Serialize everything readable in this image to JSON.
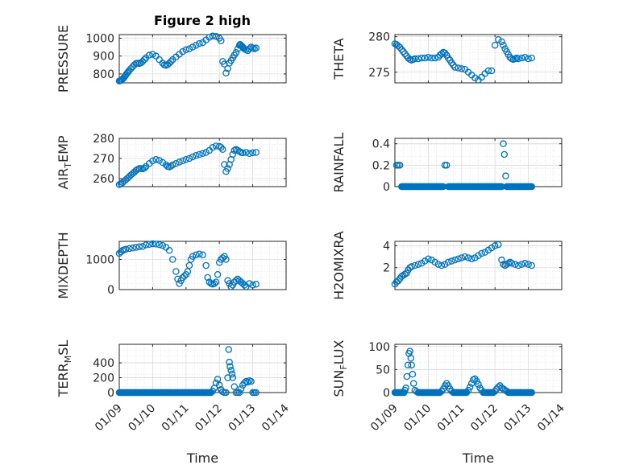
{
  "figure": {
    "title": "Figure 2 high",
    "marker_color": "#0072BD"
  },
  "chart_data": [
    {
      "type": "scatter",
      "ylabel": "PRESSURE",
      "ylim": [
        750,
        1020
      ],
      "yticks": [
        800,
        900,
        1000
      ],
      "xlim": [
        0,
        5
      ],
      "xticks": [],
      "x": [
        0.0,
        0.03,
        0.06,
        0.09,
        0.12,
        0.15,
        0.18,
        0.21,
        0.24,
        0.27,
        0.3,
        0.35,
        0.4,
        0.45,
        0.5,
        0.55,
        0.6,
        0.65,
        0.7,
        0.75,
        0.8,
        0.9,
        1.0,
        1.1,
        1.2,
        1.3,
        1.35,
        1.4,
        1.45,
        1.5,
        1.55,
        1.6,
        1.7,
        1.8,
        1.9,
        2.0,
        2.1,
        2.2,
        2.3,
        2.4,
        2.5,
        2.6,
        2.7,
        2.8,
        2.9,
        3.0,
        3.05,
        3.1,
        3.15,
        3.2,
        3.25,
        3.3,
        3.35,
        3.4,
        3.45,
        3.5,
        3.55,
        3.6,
        3.62,
        3.65,
        3.68,
        3.7,
        3.72,
        3.75,
        3.8,
        3.85,
        3.9,
        3.95,
        4.0,
        4.05,
        4.1
      ],
      "y": [
        760,
        762,
        765,
        770,
        775,
        782,
        790,
        798,
        805,
        812,
        820,
        830,
        840,
        850,
        858,
        860,
        858,
        862,
        870,
        880,
        890,
        905,
        910,
        900,
        880,
        860,
        850,
        848,
        852,
        860,
        870,
        880,
        895,
        910,
        925,
        935,
        940,
        950,
        960,
        970,
        975,
        990,
        1005,
        1012,
        1010,
        1000,
        985,
        870,
        855,
        805,
        830,
        860,
        875,
        890,
        905,
        920,
        940,
        960,
        965,
        960,
        955,
        950,
        945,
        940,
        935,
        930,
        940,
        950,
        945,
        940,
        945
      ],
      "y_x": [
        3.12
      ],
      "title": ""
    },
    {
      "type": "scatter",
      "ylabel": "THETA",
      "ylim": [
        273.5,
        280.3
      ],
      "yticks": [
        275,
        280
      ],
      "xlim": [
        0,
        5
      ],
      "xticks": [],
      "x": [
        0.0,
        0.05,
        0.1,
        0.15,
        0.2,
        0.25,
        0.3,
        0.35,
        0.4,
        0.45,
        0.5,
        0.55,
        0.6,
        0.7,
        0.8,
        0.9,
        1.0,
        1.1,
        1.2,
        1.3,
        1.35,
        1.4,
        1.45,
        1.5,
        1.55,
        1.6,
        1.65,
        1.7,
        1.75,
        1.8,
        1.9,
        2.0,
        2.1,
        2.2,
        2.3,
        2.4,
        2.5,
        2.6,
        2.7,
        2.8,
        2.9,
        3.0,
        3.1,
        3.2,
        3.25,
        3.3,
        3.35,
        3.4,
        3.45,
        3.5,
        3.55,
        3.6,
        3.65,
        3.7,
        3.8,
        3.9,
        4.0,
        4.1
      ],
      "y": [
        279.0,
        278.9,
        278.7,
        278.5,
        278.2,
        277.9,
        277.6,
        277.3,
        277.0,
        276.8,
        276.7,
        276.8,
        276.9,
        276.9,
        277.0,
        277.0,
        277.1,
        277.0,
        277.0,
        277.1,
        277.4,
        277.6,
        277.8,
        277.7,
        277.4,
        277.0,
        276.7,
        276.3,
        276.0,
        275.7,
        275.6,
        275.5,
        275.4,
        275.0,
        274.6,
        274.2,
        273.9,
        274.3,
        274.8,
        275.2,
        275.2,
        278.8,
        279.6,
        279.3,
        278.8,
        278.3,
        277.9,
        277.5,
        277.1,
        276.9,
        276.8,
        276.9,
        277.0,
        276.9,
        277.0,
        277.1,
        276.9,
        277.0
      ],
      "title": ""
    },
    {
      "type": "scatter",
      "ylabel": "AIR_TEMP",
      "ylim": [
        256,
        280
      ],
      "yticks": [
        260,
        270,
        280
      ],
      "xlim": [
        0,
        5
      ],
      "xticks": [],
      "x": [
        0.0,
        0.05,
        0.1,
        0.15,
        0.2,
        0.25,
        0.3,
        0.35,
        0.4,
        0.45,
        0.5,
        0.55,
        0.6,
        0.65,
        0.7,
        0.75,
        0.8,
        0.9,
        1.0,
        1.1,
        1.2,
        1.3,
        1.4,
        1.45,
        1.5,
        1.55,
        1.6,
        1.7,
        1.8,
        1.9,
        2.0,
        2.1,
        2.2,
        2.3,
        2.4,
        2.5,
        2.6,
        2.7,
        2.8,
        2.9,
        3.0,
        3.05,
        3.1,
        3.15,
        3.2,
        3.25,
        3.3,
        3.35,
        3.4,
        3.45,
        3.5,
        3.55,
        3.6,
        3.65,
        3.7,
        3.8,
        3.9,
        4.0,
        4.1
      ],
      "y": [
        257.0,
        257.5,
        258.0,
        258.8,
        259.5,
        260.2,
        261.0,
        261.8,
        262.5,
        263.2,
        264.0,
        264.6,
        265.0,
        265.0,
        264.8,
        265.2,
        266.0,
        267.5,
        268.8,
        269.5,
        269.0,
        268.0,
        266.8,
        266.0,
        265.8,
        266.2,
        266.8,
        267.5,
        268.2,
        268.8,
        269.5,
        270.0,
        270.8,
        271.5,
        272.0,
        272.5,
        273.0,
        274.0,
        275.5,
        276.2,
        276.0,
        275.5,
        274.5,
        267.0,
        263.5,
        265.0,
        267.0,
        269.5,
        272.0,
        274.0,
        274.5,
        274.0,
        273.5,
        273.0,
        272.8,
        273.0,
        272.5,
        272.8,
        273.0
      ],
      "title": ""
    },
    {
      "type": "scatter",
      "ylabel": "RAINFALL",
      "ylim": [
        0,
        0.45
      ],
      "yticks": [
        0,
        0.2,
        0.4
      ],
      "xlim": [
        0,
        5
      ],
      "xticks": [],
      "x": [
        0.05,
        0.1,
        0.15,
        1.5,
        1.55,
        3.25,
        3.28,
        3.32
      ],
      "y": [
        0.2,
        0.2,
        0.2,
        0.2,
        0.2,
        0.4,
        0.3,
        0.1
      ],
      "zero_run": [
        [
          0.2,
          1.45
        ],
        [
          1.6,
          3.2
        ],
        [
          3.35,
          4.1
        ]
      ],
      "title": ""
    },
    {
      "type": "scatter",
      "ylabel": "MIXDEPTH",
      "ylim": [
        0,
        1600
      ],
      "yticks": [
        0,
        1000
      ],
      "xlim": [
        0,
        5
      ],
      "xticks": [],
      "x": [
        0.0,
        0.05,
        0.1,
        0.15,
        0.2,
        0.3,
        0.4,
        0.5,
        0.6,
        0.7,
        0.8,
        0.9,
        1.0,
        1.1,
        1.2,
        1.3,
        1.4,
        1.5,
        1.6,
        1.7,
        1.75,
        1.8,
        1.85,
        1.9,
        1.95,
        2.0,
        2.05,
        2.1,
        2.15,
        2.2,
        2.3,
        2.4,
        2.5,
        2.6,
        2.65,
        2.7,
        2.75,
        2.8,
        2.85,
        2.9,
        2.95,
        3.0,
        3.05,
        3.1,
        3.15,
        3.2,
        3.25,
        3.3,
        3.35,
        3.4,
        3.45,
        3.5,
        3.55,
        3.6,
        3.65,
        3.7,
        3.75,
        3.8,
        3.9,
        4.0,
        4.1
      ],
      "y": [
        1200,
        1250,
        1300,
        1320,
        1340,
        1360,
        1380,
        1400,
        1420,
        1430,
        1480,
        1500,
        1520,
        1510,
        1490,
        1460,
        1400,
        1300,
        1000,
        600,
        350,
        200,
        300,
        400,
        450,
        500,
        600,
        800,
        1000,
        1100,
        1150,
        1180,
        1150,
        800,
        400,
        250,
        200,
        180,
        200,
        250,
        500,
        900,
        1000,
        1050,
        1100,
        1000,
        300,
        200,
        100,
        150,
        250,
        300,
        350,
        300,
        250,
        200,
        150,
        100,
        200,
        150,
        180
      ],
      "title": ""
    },
    {
      "type": "scatter",
      "ylabel": "H2OMIXRA",
      "ylim": [
        0,
        4.4
      ],
      "yticks": [
        2,
        4
      ],
      "xlim": [
        0,
        5
      ],
      "xticks": [],
      "x": [
        0.0,
        0.05,
        0.1,
        0.15,
        0.2,
        0.25,
        0.3,
        0.35,
        0.4,
        0.45,
        0.5,
        0.6,
        0.7,
        0.8,
        0.9,
        1.0,
        1.1,
        1.2,
        1.3,
        1.4,
        1.5,
        1.6,
        1.7,
        1.8,
        1.9,
        2.0,
        2.1,
        2.2,
        2.3,
        2.4,
        2.5,
        2.6,
        2.7,
        2.8,
        2.9,
        3.0,
        3.1,
        3.2,
        3.25,
        3.3,
        3.35,
        3.4,
        3.45,
        3.5,
        3.6,
        3.7,
        3.8,
        3.9,
        4.0,
        4.1
      ],
      "y": [
        0.5,
        0.7,
        0.8,
        1.0,
        1.2,
        1.3,
        1.4,
        1.5,
        1.8,
        2.0,
        2.1,
        2.2,
        2.3,
        2.4,
        2.6,
        2.8,
        2.7,
        2.5,
        2.3,
        2.2,
        2.3,
        2.5,
        2.6,
        2.7,
        2.8,
        2.9,
        3.0,
        2.9,
        2.8,
        2.9,
        3.1,
        3.3,
        3.4,
        3.6,
        3.8,
        4.0,
        4.1,
        2.7,
        2.3,
        2.2,
        2.3,
        2.4,
        2.5,
        2.4,
        2.3,
        2.2,
        2.3,
        2.4,
        2.3,
        2.2
      ],
      "title": ""
    },
    {
      "type": "scatter",
      "ylabel": "TERR_MSL",
      "ylim": [
        0,
        650
      ],
      "yticks": [
        0,
        200,
        400
      ],
      "xlim": [
        0,
        5
      ],
      "xticks": [
        0,
        1,
        2,
        3,
        4,
        5
      ],
      "xticklabels": [
        "01/09",
        "01/10",
        "01/11",
        "01/12",
        "01/13",
        "01/14"
      ],
      "xlabel": "Time",
      "x": [
        2.8,
        2.85,
        2.9,
        2.95,
        3.0,
        3.05,
        3.1,
        3.15,
        3.2,
        3.25,
        3.28,
        3.3,
        3.32,
        3.35,
        3.38,
        3.4,
        3.45,
        3.5,
        3.55,
        3.6,
        3.65,
        3.7,
        3.75,
        3.8,
        3.85,
        3.9,
        3.95,
        4.0,
        4.05,
        4.1
      ],
      "y": [
        20,
        60,
        130,
        180,
        100,
        40,
        10,
        0,
        0,
        200,
        580,
        410,
        350,
        300,
        250,
        200,
        80,
        0,
        0,
        0,
        50,
        100,
        130,
        150,
        140,
        160,
        150,
        0,
        0,
        0
      ],
      "zero_run": [
        [
          0.0,
          2.75
        ]
      ],
      "title": ""
    },
    {
      "type": "scatter",
      "ylabel": "SUN_FLUX",
      "ylim": [
        0,
        105
      ],
      "yticks": [
        0,
        50,
        100
      ],
      "xlim": [
        0,
        5
      ],
      "xticks": [
        0,
        1,
        2,
        3,
        4,
        5
      ],
      "xticklabels": [
        "01/09",
        "01/10",
        "01/11",
        "01/12",
        "01/13",
        "01/14"
      ],
      "xlabel": "Time",
      "x": [
        0.3,
        0.33,
        0.36,
        0.39,
        0.42,
        0.45,
        0.48,
        0.5,
        0.53,
        0.56,
        0.6,
        0.65,
        1.4,
        1.45,
        1.5,
        1.55,
        1.6,
        1.65,
        1.7,
        2.2,
        2.25,
        2.3,
        2.35,
        2.4,
        2.45,
        2.5,
        2.55,
        2.6,
        3.0,
        3.05,
        3.1,
        3.15,
        3.2,
        3.25,
        3.3,
        3.35
      ],
      "y": [
        5,
        10,
        35,
        60,
        85,
        90,
        75,
        60,
        40,
        20,
        5,
        2,
        3,
        8,
        15,
        20,
        15,
        8,
        3,
        5,
        12,
        20,
        28,
        30,
        25,
        18,
        10,
        5,
        3,
        8,
        12,
        15,
        10,
        8,
        5,
        3
      ],
      "zero_run": [
        [
          0.0,
          0.28
        ],
        [
          0.7,
          1.35
        ],
        [
          1.75,
          2.15
        ],
        [
          2.65,
          2.95
        ],
        [
          3.4,
          4.1
        ]
      ],
      "title": ""
    }
  ]
}
